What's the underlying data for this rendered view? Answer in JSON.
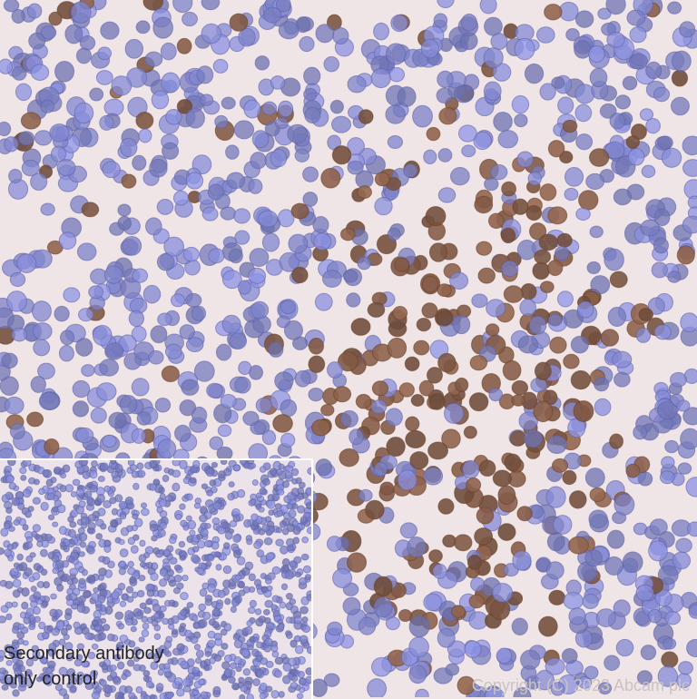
{
  "image": {
    "subject": "immunohistochemistry tissue section",
    "colors": {
      "background": "#efe4e6",
      "nucleus": "#7f83c6",
      "positive_stain": "#8a5a3e"
    }
  },
  "inset": {
    "line1": "Secondary antibody",
    "line2": "only control"
  },
  "watermark": "Copyright (C) 2023 Abcam plc"
}
